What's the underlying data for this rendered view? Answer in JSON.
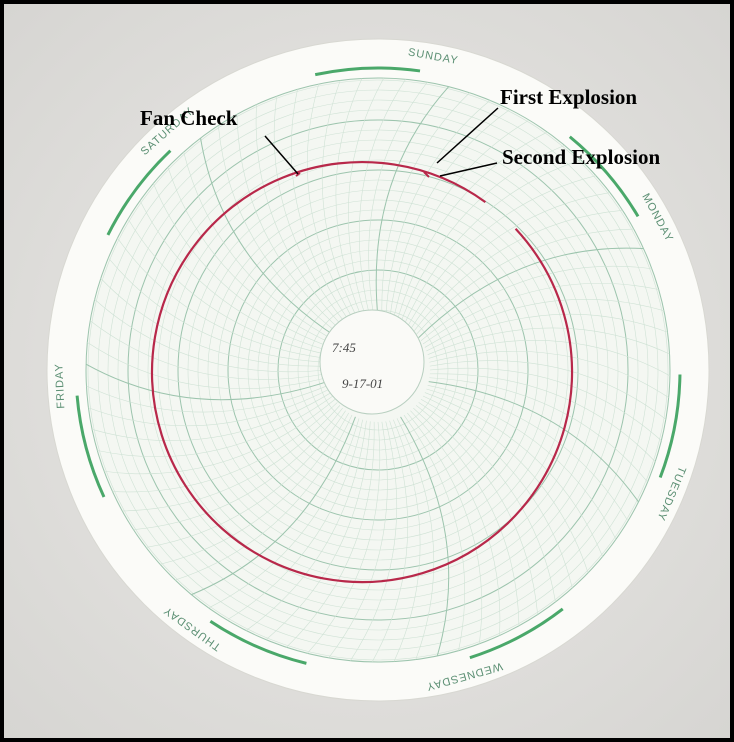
{
  "annotations": [
    "Fan Check",
    "First Explosion",
    "Second Explosion"
  ],
  "days": [
    "SUNDAY",
    "MONDAY",
    "TUESDAY",
    "WEDNESDAY",
    "THURSDAY",
    "FRIDAY",
    "SATURDAY"
  ],
  "hub": {
    "time": "7:45",
    "date": "9-17-01"
  }
}
